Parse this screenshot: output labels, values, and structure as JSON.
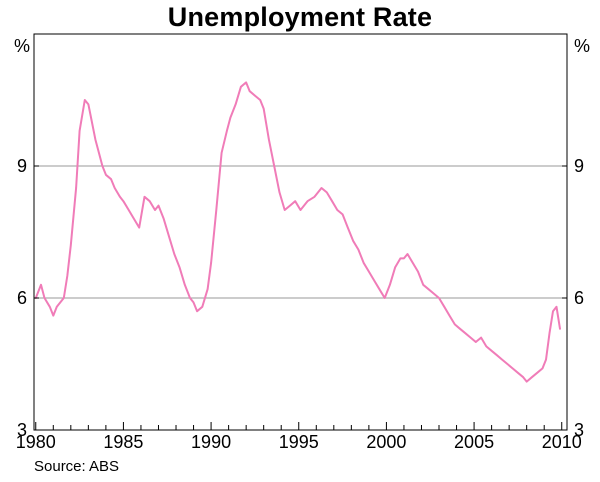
{
  "chart_data": {
    "type": "line",
    "title": "Unemployment Rate",
    "unit_label": "%",
    "source": "Source: ABS",
    "xlim": [
      1979.9,
      2010.3
    ],
    "ylim": [
      3,
      12
    ],
    "y_ticks": [
      3,
      6,
      9
    ],
    "x_ticks": [
      1980,
      1985,
      1990,
      1995,
      2000,
      2005,
      2010
    ],
    "x_tick_labels": [
      "1980",
      "1985",
      "1990",
      "1995",
      "2000",
      "2005",
      "2010"
    ],
    "y_tick_labels": [
      "3",
      "6",
      "9"
    ],
    "grid": "horizontal",
    "line_color": "#f07cb8",
    "series": [
      {
        "x": [
          1980.0,
          1980.3,
          1980.5,
          1980.8,
          1981.0,
          1981.2,
          1981.4,
          1981.6,
          1981.8,
          1982.0,
          1982.3,
          1982.5,
          1982.8,
          1983.0,
          1983.2,
          1983.4,
          1983.6,
          1983.8,
          1984.0,
          1984.3,
          1984.5,
          1984.8,
          1985.0,
          1985.3,
          1985.6,
          1985.9,
          1986.2,
          1986.5,
          1986.8,
          1987.0,
          1987.3,
          1987.6,
          1987.9,
          1988.2,
          1988.5,
          1988.8,
          1989.0,
          1989.2,
          1989.5,
          1989.8,
          1990.0,
          1990.3,
          1990.6,
          1990.9,
          1991.1,
          1991.4,
          1991.7,
          1992.0,
          1992.2,
          1992.5,
          1992.8,
          1993.0,
          1993.3,
          1993.6,
          1993.9,
          1994.2,
          1994.5,
          1994.8,
          1995.1,
          1995.5,
          1995.9,
          1996.3,
          1996.6,
          1996.9,
          1997.2,
          1997.5,
          1997.8,
          1998.1,
          1998.4,
          1998.7,
          1999.0,
          1999.3,
          1999.6,
          1999.9,
          2000.2,
          2000.5,
          2000.8,
          2001.0,
          2001.2,
          2001.5,
          2001.8,
          2002.1,
          2002.4,
          2002.7,
          2003.0,
          2003.3,
          2003.6,
          2003.9,
          2004.2,
          2004.5,
          2004.8,
          2005.1,
          2005.4,
          2005.7,
          2006.0,
          2006.3,
          2006.6,
          2006.9,
          2007.2,
          2007.5,
          2007.8,
          2008.0,
          2008.3,
          2008.6,
          2008.9,
          2009.1,
          2009.3,
          2009.5,
          2009.7,
          2009.9
        ],
        "values": [
          6.0,
          6.3,
          6.0,
          5.8,
          5.6,
          5.8,
          5.9,
          6.0,
          6.5,
          7.2,
          8.5,
          9.8,
          10.5,
          10.4,
          10.0,
          9.6,
          9.3,
          9.0,
          8.8,
          8.7,
          8.5,
          8.3,
          8.2,
          8.0,
          7.8,
          7.6,
          8.3,
          8.2,
          8.0,
          8.1,
          7.8,
          7.4,
          7.0,
          6.7,
          6.3,
          6.0,
          5.9,
          5.7,
          5.8,
          6.2,
          6.8,
          8.0,
          9.3,
          9.8,
          10.1,
          10.4,
          10.8,
          10.9,
          10.7,
          10.6,
          10.5,
          10.3,
          9.6,
          9.0,
          8.4,
          8.0,
          8.1,
          8.2,
          8.0,
          8.2,
          8.3,
          8.5,
          8.4,
          8.2,
          8.0,
          7.9,
          7.6,
          7.3,
          7.1,
          6.8,
          6.6,
          6.4,
          6.2,
          6.0,
          6.3,
          6.7,
          6.9,
          6.9,
          7.0,
          6.8,
          6.6,
          6.3,
          6.2,
          6.1,
          6.0,
          5.8,
          5.6,
          5.4,
          5.3,
          5.2,
          5.1,
          5.0,
          5.1,
          4.9,
          4.8,
          4.7,
          4.6,
          4.5,
          4.4,
          4.3,
          4.2,
          4.1,
          4.2,
          4.3,
          4.4,
          4.6,
          5.2,
          5.7,
          5.8,
          5.3
        ]
      }
    ]
  }
}
